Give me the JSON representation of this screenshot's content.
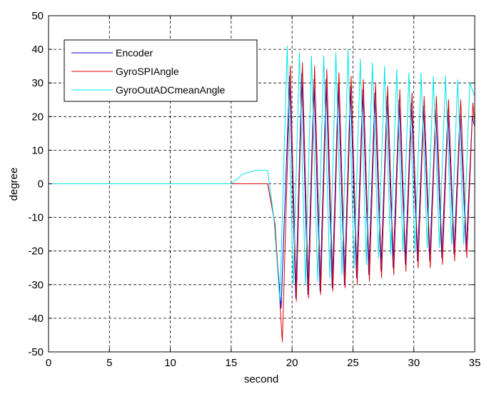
{
  "chart_data": {
    "type": "line",
    "xlabel": "second",
    "ylabel": "degree",
    "xlim": [
      0,
      35
    ],
    "ylim": [
      -50,
      50
    ],
    "xticks": [
      0,
      5,
      10,
      15,
      20,
      25,
      30,
      35
    ],
    "yticks": [
      -50,
      -40,
      -30,
      -20,
      -10,
      0,
      10,
      20,
      30,
      40,
      50
    ],
    "grid": true,
    "grid_style": "dashed",
    "legend_position": "top-left",
    "series": [
      {
        "name": "Encoder",
        "color": "#0000cc",
        "x": [
          0,
          15,
          18,
          18.5,
          19.1,
          19.8,
          20.3,
          20.8,
          21.3,
          21.8,
          22.3,
          22.8,
          23.3,
          23.8,
          24.3,
          24.8,
          25.3,
          25.8,
          26.3,
          26.8,
          27.3,
          27.8,
          28.3,
          28.8,
          29.3,
          29.8,
          30.3,
          30.8,
          31.3,
          31.8,
          32.3,
          32.8,
          33.3,
          33.8,
          34.3,
          34.8,
          35
        ],
        "y": [
          0,
          0,
          0,
          -10,
          -37,
          32,
          -34,
          33,
          -33,
          31,
          -32,
          31,
          -31,
          30,
          -30,
          29,
          -28,
          28,
          -27,
          27,
          -26,
          26,
          -25,
          25,
          -24,
          24,
          -23,
          23,
          -23,
          22,
          -22,
          22,
          -21,
          21,
          -20,
          20,
          17
        ]
      },
      {
        "name": "GyroSPIAngle",
        "color": "#e00000",
        "x": [
          0,
          15,
          18,
          18.6,
          19.2,
          19.85,
          20.35,
          20.85,
          21.35,
          21.85,
          22.35,
          22.85,
          23.35,
          23.85,
          24.35,
          24.85,
          25.35,
          25.85,
          26.35,
          26.85,
          27.35,
          27.85,
          28.35,
          28.85,
          29.35,
          29.85,
          30.35,
          30.85,
          31.35,
          31.85,
          32.35,
          32.85,
          33.35,
          33.85,
          34.35,
          34.85,
          35
        ],
        "y": [
          0,
          0,
          0,
          -12,
          -47,
          35,
          -35,
          36,
          -34,
          35,
          -33,
          34,
          -32,
          33,
          -31,
          32,
          -30,
          31,
          -29,
          30,
          -28,
          29,
          -27,
          28,
          -26,
          27,
          -25,
          26,
          -25,
          26,
          -24,
          25,
          -23,
          25,
          -22,
          24,
          18
        ]
      },
      {
        "name": "GyroOutADCmeanAngle",
        "color": "#00e5e5",
        "x": [
          0,
          15,
          16,
          17,
          18,
          18.5,
          19.0,
          19.6,
          20.1,
          20.6,
          21.1,
          21.6,
          22.1,
          22.6,
          23.1,
          23.6,
          24.1,
          24.6,
          25.1,
          25.6,
          26.1,
          26.6,
          27.1,
          27.6,
          28.1,
          28.6,
          29.1,
          29.6,
          30.1,
          30.6,
          31.1,
          31.6,
          32.1,
          32.6,
          33.1,
          33.6,
          34.1,
          34.6,
          35
        ],
        "y": [
          0,
          0,
          3,
          4,
          4,
          -10,
          -35,
          41,
          -30,
          39,
          -30,
          38,
          -29,
          38,
          -28,
          39,
          -27,
          40,
          -25,
          37,
          -24,
          36,
          -22,
          35,
          -21,
          34,
          -20,
          33,
          -20,
          33,
          -19,
          32,
          -19,
          32,
          -18,
          31,
          -18,
          30,
          26
        ]
      }
    ]
  }
}
